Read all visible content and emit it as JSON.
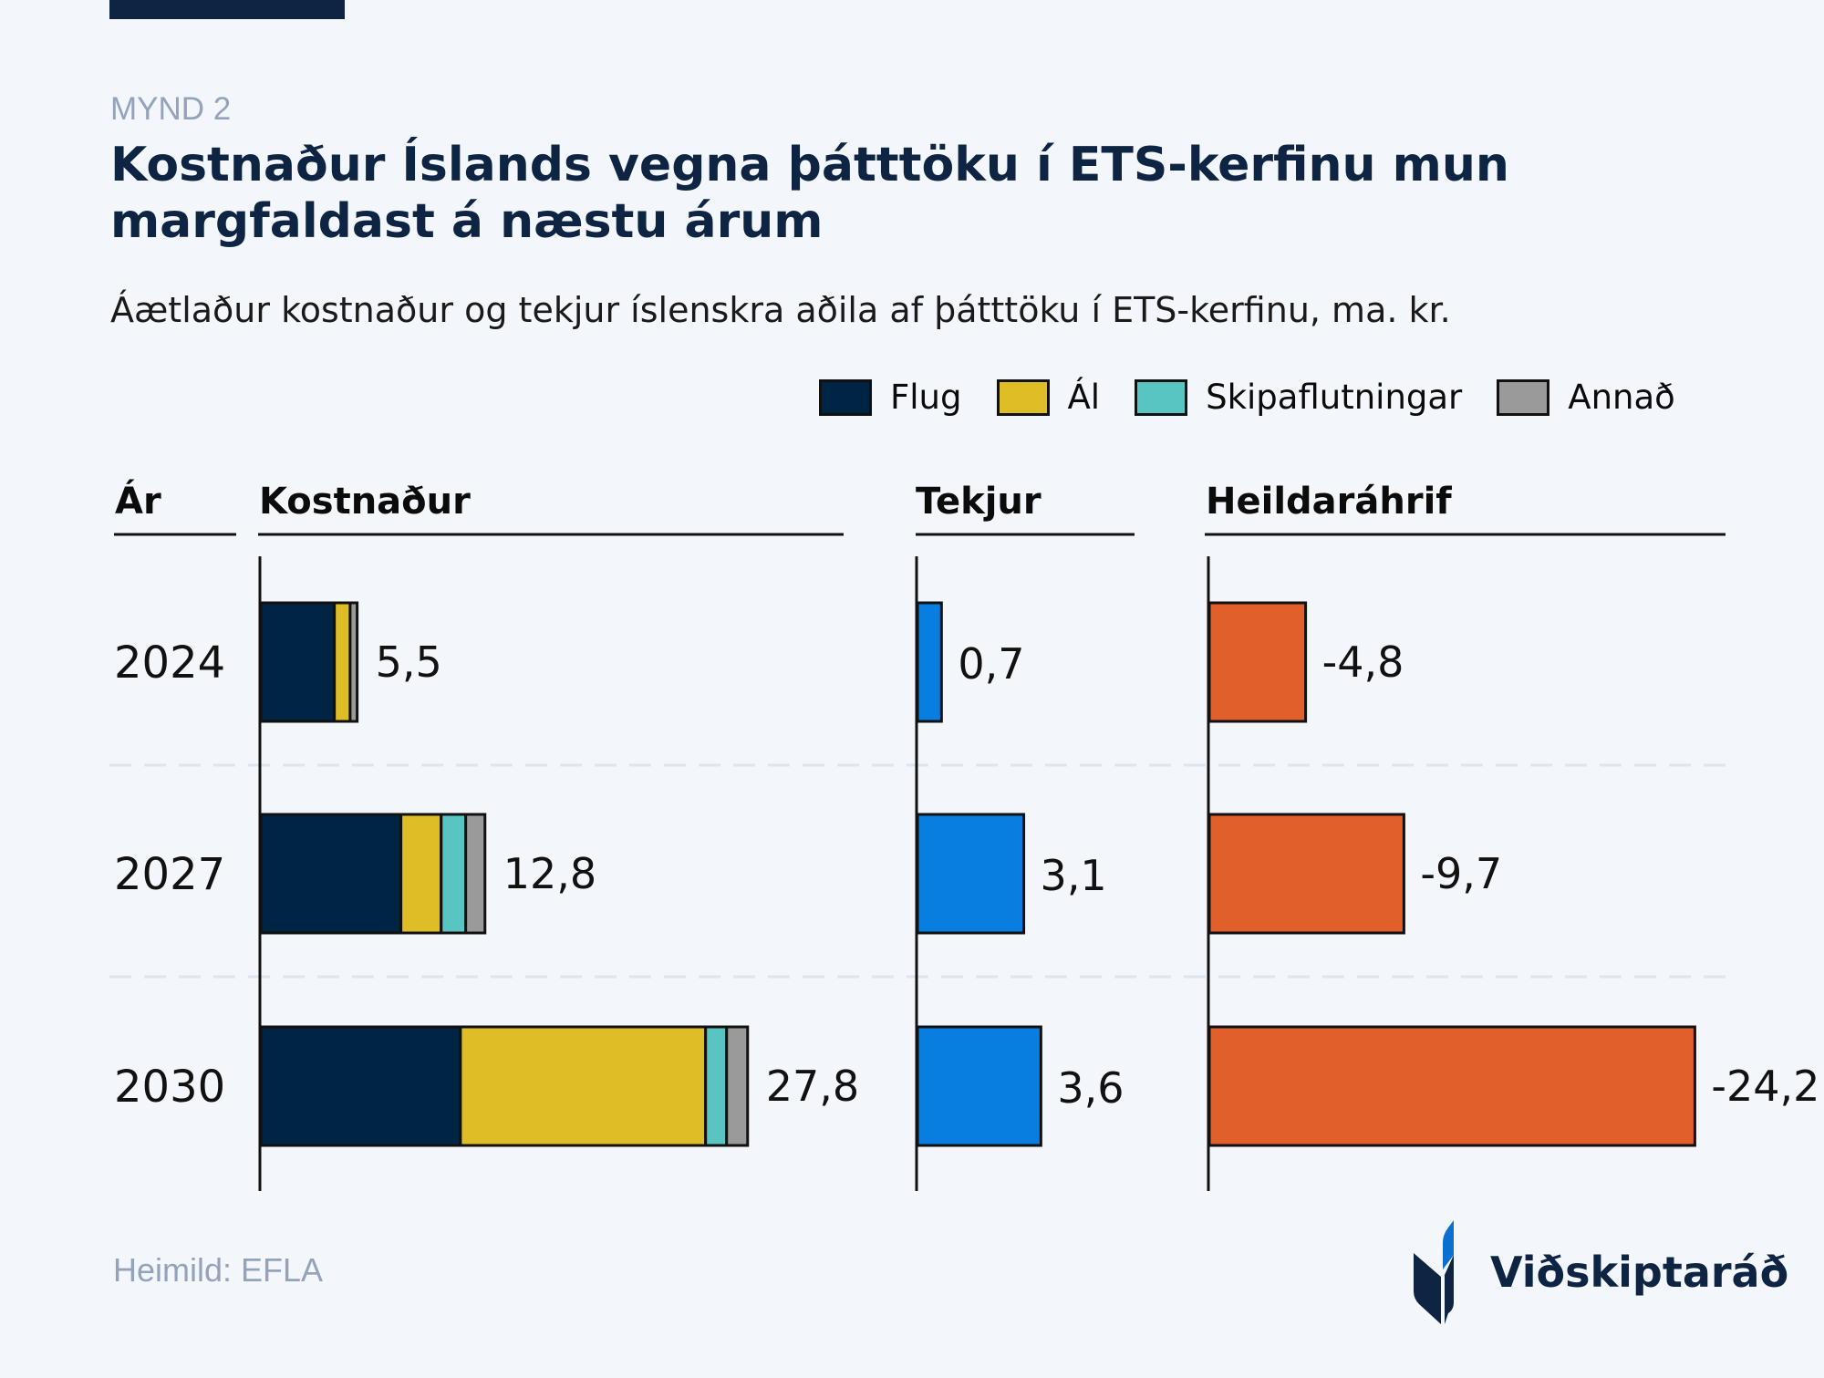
{
  "figure_label": "MYND 2",
  "title": "Kostnaður Íslands vegna þátttöku í ETS-kerfinu mun margfaldast á næstu árum",
  "subtitle": "Áætlaður kostnaður og tekjur íslenskra aðila af þátttöku í ETS-kerfinu, ma. kr.",
  "source": "Heimild: EFLA",
  "logo_text": "Viðskiptaráð",
  "colors": {
    "Flug": "#002444",
    "Ál": "#debd26",
    "Skipaflutningar": "#59c5c3",
    "Annað": "#9a9a9a",
    "tekjur": "#087ee0",
    "heildar": "#e05f2a",
    "background": "#f3f6fb",
    "title": "#0d2443"
  },
  "chart_data": {
    "type": "bar",
    "orientation": "horizontal",
    "legend": {
      "placement": "top-right",
      "entries": [
        "Flug",
        "Ál",
        "Skipaflutningar",
        "Annað"
      ]
    },
    "column_headers": {
      "year": "Ár",
      "cost": "Kostnaður",
      "income": "Tekjur",
      "net": "Heildaráhrif"
    },
    "categories": [
      "2024",
      "2027",
      "2030"
    ],
    "panels": [
      {
        "key": "cost",
        "stacked": true,
        "series": [
          {
            "name": "Flug",
            "values": [
              4.2,
              8.0,
              11.4
            ]
          },
          {
            "name": "Ál",
            "values": [
              0.9,
              2.3,
              14.0
            ]
          },
          {
            "name": "Skipaflutningar",
            "values": [
              0.0,
              1.4,
              1.2
            ]
          },
          {
            "name": "Annað",
            "values": [
              0.4,
              1.1,
              1.2
            ]
          }
        ],
        "totals": [
          5.5,
          12.8,
          27.8
        ],
        "labels": [
          "5,5",
          "12,8",
          "27,8"
        ]
      },
      {
        "key": "income",
        "values": [
          0.7,
          3.1,
          3.6
        ],
        "labels": [
          "0,7",
          "3,1",
          "3,6"
        ]
      },
      {
        "key": "net",
        "values": [
          -4.8,
          -9.7,
          -24.2
        ],
        "labels": [
          "-4,8",
          "-9,7",
          "-24,2"
        ]
      }
    ],
    "grid": false
  }
}
